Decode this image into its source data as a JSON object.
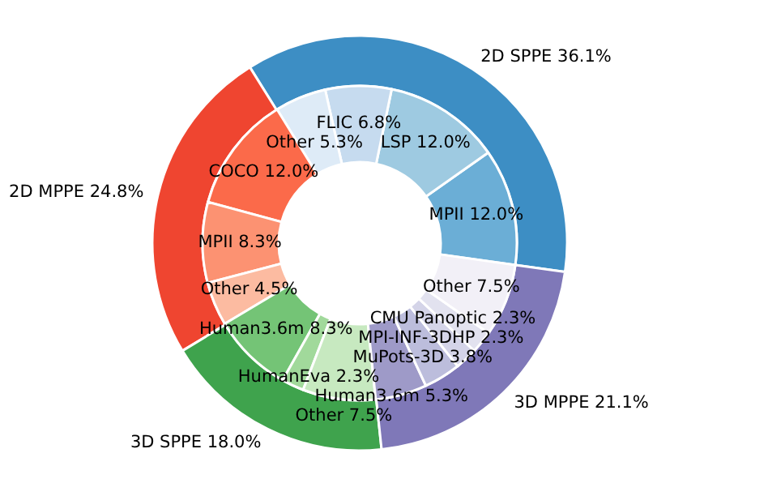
{
  "chart_data": {
    "type": "donut",
    "categories": [
      "2D SPPE",
      "2D MPPE",
      "3D SPPE",
      "3D MPPE",
      "MPII",
      "LSP",
      "FLIC",
      "Other",
      "COCO",
      "MPII",
      "Other",
      "Human3.6m",
      "HumanEva",
      "Other",
      "Human3.6m",
      "MuPots-3D",
      "MPI-INF-3DHP",
      "CMU Panoptic",
      "Other"
    ],
    "series": [
      {
        "values": [
          36.1,
          24.8,
          18.0,
          21.1,
          null,
          null,
          null,
          null,
          null,
          null,
          null,
          null,
          null,
          null,
          null,
          null,
          null,
          null,
          null
        ],
        "value_labels": [
          "36.1%",
          "24.8%",
          "18.0%",
          "21.1%",
          null,
          null,
          null,
          null,
          null,
          null,
          null,
          null,
          null,
          null,
          null,
          null,
          null,
          null,
          null
        ],
        "colors": [
          "#3d8ec4",
          "#ef4530",
          "#3fa34d",
          "#7f78b8",
          null,
          null,
          null,
          null,
          null,
          null,
          null,
          null,
          null,
          null,
          null,
          null,
          null,
          null,
          null
        ]
      },
      {
        "values": [
          null,
          null,
          null,
          null,
          12.0,
          12.0,
          6.8,
          5.3,
          12.0,
          8.3,
          4.5,
          8.3,
          2.3,
          7.5,
          5.3,
          3.8,
          2.3,
          2.3,
          7.5
        ],
        "value_labels": [
          null,
          null,
          null,
          null,
          "12.0%",
          "12.0%",
          "6.8%",
          "5.3%",
          "12.0%",
          "8.3%",
          "4.5%",
          "8.3%",
          "2.3%",
          "7.5%",
          "5.3%",
          "3.8%",
          "2.3%",
          "2.3%",
          "7.5%"
        ],
        "colors": [
          null,
          null,
          null,
          null,
          "#6baed6",
          "#9ecae1",
          "#c6dbef",
          "#deebf7",
          "#fb6a4a",
          "#fc9272",
          "#fcbba1",
          "#74c476",
          "#a1d99b",
          "#c7e9c0",
          "#9e9ac8",
          "#bcbddc",
          "#d4d4e8",
          "#e2e2ef",
          "#f2f0f7"
        ]
      }
    ]
  }
}
